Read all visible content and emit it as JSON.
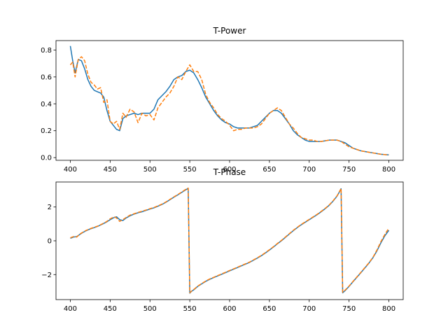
{
  "chart_data": [
    {
      "type": "line",
      "title": "T-Power",
      "xlabel": "",
      "ylabel": "",
      "xlim": [
        382,
        818
      ],
      "ylim": [
        -0.02,
        0.87
      ],
      "xticks": [
        400,
        450,
        500,
        550,
        600,
        650,
        700,
        750,
        800
      ],
      "yticks": [
        0.0,
        0.2,
        0.4,
        0.6,
        0.8
      ],
      "ytick_labels": [
        "0.0",
        "0.2",
        "0.4",
        "0.6",
        "0.8"
      ],
      "grid": false,
      "series": [
        {
          "color": "#1f77b4",
          "style": "solid",
          "x": [
            400,
            403,
            406,
            410,
            414,
            418,
            422,
            426,
            430,
            434,
            438,
            442,
            446,
            450,
            454,
            458,
            462,
            466,
            470,
            475,
            480,
            485,
            490,
            495,
            500,
            505,
            510,
            515,
            520,
            525,
            530,
            535,
            540,
            545,
            550,
            555,
            560,
            565,
            570,
            575,
            580,
            585,
            590,
            595,
            600,
            605,
            610,
            615,
            620,
            625,
            630,
            635,
            640,
            645,
            650,
            655,
            660,
            665,
            670,
            675,
            680,
            685,
            690,
            695,
            700,
            705,
            710,
            715,
            720,
            725,
            730,
            735,
            740,
            745,
            750,
            755,
            760,
            765,
            770,
            775,
            780,
            785,
            790,
            795,
            800
          ],
          "values": [
            0.83,
            0.72,
            0.63,
            0.73,
            0.72,
            0.66,
            0.58,
            0.53,
            0.5,
            0.49,
            0.48,
            0.45,
            0.35,
            0.27,
            0.24,
            0.21,
            0.2,
            0.29,
            0.31,
            0.32,
            0.33,
            0.32,
            0.33,
            0.33,
            0.33,
            0.36,
            0.43,
            0.46,
            0.49,
            0.53,
            0.58,
            0.6,
            0.61,
            0.64,
            0.65,
            0.63,
            0.58,
            0.52,
            0.45,
            0.4,
            0.35,
            0.31,
            0.28,
            0.26,
            0.25,
            0.23,
            0.22,
            0.22,
            0.22,
            0.22,
            0.23,
            0.24,
            0.27,
            0.3,
            0.33,
            0.35,
            0.35,
            0.33,
            0.29,
            0.25,
            0.2,
            0.17,
            0.15,
            0.13,
            0.12,
            0.12,
            0.12,
            0.12,
            0.125,
            0.13,
            0.13,
            0.13,
            0.12,
            0.11,
            0.09,
            0.07,
            0.06,
            0.05,
            0.045,
            0.04,
            0.035,
            0.03,
            0.025,
            0.022,
            0.02
          ]
        },
        {
          "color": "#ff7f0e",
          "style": "dashed",
          "x": [
            400,
            403,
            406,
            410,
            414,
            418,
            422,
            426,
            430,
            434,
            438,
            442,
            446,
            450,
            454,
            458,
            462,
            466,
            470,
            475,
            480,
            485,
            490,
            495,
            500,
            505,
            510,
            515,
            520,
            525,
            530,
            535,
            540,
            545,
            550,
            555,
            560,
            565,
            570,
            575,
            580,
            585,
            590,
            595,
            600,
            605,
            610,
            615,
            620,
            625,
            630,
            635,
            640,
            645,
            650,
            655,
            660,
            665,
            670,
            675,
            680,
            685,
            690,
            695,
            700,
            705,
            710,
            715,
            720,
            725,
            730,
            735,
            740,
            745,
            750,
            755,
            760,
            765,
            770,
            775,
            780,
            785,
            790,
            795,
            800
          ],
          "values": [
            0.69,
            0.71,
            0.6,
            0.73,
            0.75,
            0.72,
            0.62,
            0.56,
            0.54,
            0.51,
            0.52,
            0.41,
            0.43,
            0.27,
            0.25,
            0.27,
            0.21,
            0.33,
            0.3,
            0.36,
            0.34,
            0.26,
            0.33,
            0.31,
            0.32,
            0.28,
            0.37,
            0.41,
            0.45,
            0.48,
            0.53,
            0.6,
            0.58,
            0.64,
            0.69,
            0.64,
            0.64,
            0.58,
            0.47,
            0.41,
            0.37,
            0.32,
            0.29,
            0.27,
            0.24,
            0.2,
            0.21,
            0.21,
            0.22,
            0.22,
            0.22,
            0.23,
            0.25,
            0.29,
            0.33,
            0.35,
            0.37,
            0.35,
            0.3,
            0.25,
            0.22,
            0.18,
            0.15,
            0.14,
            0.13,
            0.13,
            0.12,
            0.12,
            0.125,
            0.13,
            0.13,
            0.13,
            0.12,
            0.1,
            0.08,
            0.07,
            0.06,
            0.05,
            0.045,
            0.04,
            0.035,
            0.03,
            0.025,
            0.022,
            0.02
          ]
        }
      ]
    },
    {
      "type": "line",
      "title": "T-Phase",
      "xlabel": "",
      "ylabel": "",
      "xlim": [
        382,
        818
      ],
      "ylim": [
        -3.48,
        3.48
      ],
      "xticks": [
        400,
        450,
        500,
        550,
        600,
        650,
        700,
        750,
        800
      ],
      "yticks": [
        -2,
        0,
        2
      ],
      "ytick_labels": [
        "−2",
        "0",
        "2"
      ],
      "grid": false,
      "series": [
        {
          "color": "#1f77b4",
          "style": "solid",
          "x": [
            400,
            404,
            408,
            412,
            416,
            420,
            425,
            430,
            435,
            440,
            445,
            450,
            455,
            458,
            462,
            466,
            470,
            475,
            480,
            485,
            490,
            495,
            500,
            505,
            510,
            515,
            520,
            525,
            530,
            535,
            540,
            545,
            548,
            550,
            552,
            555,
            560,
            565,
            570,
            575,
            580,
            585,
            590,
            595,
            600,
            605,
            610,
            615,
            620,
            625,
            630,
            635,
            640,
            645,
            650,
            655,
            660,
            665,
            670,
            675,
            680,
            685,
            690,
            695,
            700,
            705,
            710,
            715,
            720,
            725,
            730,
            735,
            738,
            740,
            742,
            745,
            750,
            755,
            760,
            765,
            770,
            775,
            780,
            785,
            790,
            795,
            800
          ],
          "values": [
            0.15,
            0.22,
            0.25,
            0.38,
            0.5,
            0.6,
            0.7,
            0.78,
            0.87,
            0.98,
            1.1,
            1.25,
            1.38,
            1.42,
            1.25,
            1.2,
            1.35,
            1.48,
            1.58,
            1.66,
            1.72,
            1.8,
            1.88,
            1.95,
            2.05,
            2.15,
            2.28,
            2.43,
            2.58,
            2.72,
            2.87,
            3.02,
            3.1,
            -3.1,
            -3.0,
            -2.9,
            -2.7,
            -2.55,
            -2.4,
            -2.28,
            -2.18,
            -2.08,
            -1.98,
            -1.88,
            -1.78,
            -1.68,
            -1.58,
            -1.48,
            -1.38,
            -1.28,
            -1.15,
            -1.02,
            -0.88,
            -0.72,
            -0.55,
            -0.37,
            -0.18,
            0.0,
            0.2,
            0.4,
            0.6,
            0.78,
            0.95,
            1.1,
            1.25,
            1.4,
            1.55,
            1.72,
            1.9,
            2.1,
            2.35,
            2.65,
            2.9,
            3.08,
            -3.08,
            -2.95,
            -2.7,
            -2.42,
            -2.15,
            -1.88,
            -1.6,
            -1.32,
            -1.0,
            -0.6,
            -0.12,
            0.3,
            0.62
          ]
        },
        {
          "color": "#ff7f0e",
          "style": "dashed",
          "x": [
            400,
            404,
            408,
            412,
            416,
            420,
            425,
            430,
            435,
            440,
            445,
            450,
            455,
            458,
            462,
            466,
            470,
            475,
            480,
            485,
            490,
            495,
            500,
            505,
            510,
            515,
            520,
            525,
            530,
            535,
            540,
            545,
            548,
            550,
            552,
            555,
            560,
            565,
            570,
            575,
            580,
            585,
            590,
            595,
            600,
            605,
            610,
            615,
            620,
            625,
            630,
            635,
            640,
            645,
            650,
            655,
            660,
            665,
            670,
            675,
            680,
            685,
            690,
            695,
            700,
            705,
            710,
            715,
            720,
            725,
            730,
            735,
            738,
            740,
            742,
            745,
            750,
            755,
            760,
            765,
            770,
            775,
            780,
            785,
            790,
            795,
            800
          ],
          "values": [
            0.18,
            0.25,
            0.22,
            0.4,
            0.52,
            0.62,
            0.72,
            0.8,
            0.88,
            1.0,
            1.12,
            1.3,
            1.42,
            1.35,
            1.15,
            1.25,
            1.38,
            1.52,
            1.6,
            1.68,
            1.75,
            1.82,
            1.9,
            1.97,
            2.07,
            2.17,
            2.3,
            2.45,
            2.6,
            2.74,
            2.89,
            3.05,
            3.12,
            -3.08,
            -2.98,
            -2.88,
            -2.68,
            -2.53,
            -2.38,
            -2.26,
            -2.16,
            -2.06,
            -1.96,
            -1.86,
            -1.76,
            -1.66,
            -1.56,
            -1.46,
            -1.36,
            -1.26,
            -1.13,
            -1.0,
            -0.86,
            -0.7,
            -0.53,
            -0.35,
            -0.16,
            0.02,
            0.22,
            0.42,
            0.62,
            0.8,
            0.97,
            1.12,
            1.27,
            1.42,
            1.57,
            1.74,
            1.92,
            2.12,
            2.37,
            2.67,
            2.92,
            3.1,
            -3.05,
            -2.92,
            -2.68,
            -2.4,
            -2.13,
            -1.86,
            -1.58,
            -1.3,
            -0.98,
            -0.55,
            -0.05,
            0.38,
            0.75
          ]
        }
      ]
    }
  ]
}
